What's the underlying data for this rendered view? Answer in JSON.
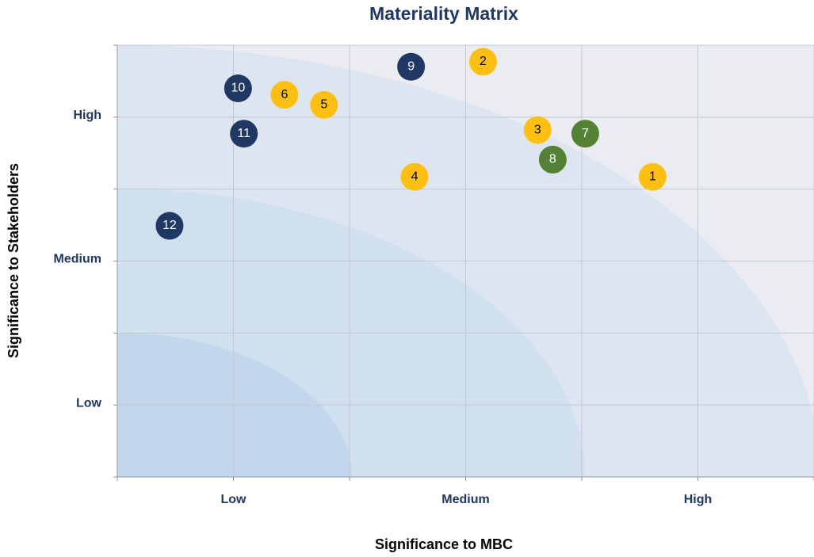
{
  "chart_data": {
    "type": "scatter",
    "title": "Materiality Matrix",
    "x_label": "Significance to MBC",
    "y_label": "Significance to Stakeholders",
    "xlim": [
      0,
      6
    ],
    "ylim": [
      0,
      6
    ],
    "xticks": [
      {
        "value": 1,
        "label": "Low"
      },
      {
        "value": 3,
        "label": "Medium"
      },
      {
        "value": 5,
        "label": "High"
      }
    ],
    "yticks": [
      {
        "value": 1,
        "label": "Low"
      },
      {
        "value": 3,
        "label": "Medium"
      },
      {
        "value": 5,
        "label": "High"
      }
    ],
    "xminorticks": [
      0,
      2,
      4,
      6
    ],
    "yminorticks": [
      0,
      2,
      4,
      6
    ],
    "grid": true,
    "series": [
      {
        "color": "#fdc010",
        "text_color": "#000000",
        "labels": [
          "1",
          "2",
          "3",
          "4",
          "5",
          "6"
        ],
        "x": [
          4.61,
          3.15,
          3.62,
          2.56,
          1.78,
          1.44
        ],
        "values": [
          4.17,
          5.77,
          4.82,
          4.17,
          5.17,
          5.31
        ]
      },
      {
        "color": "#548235",
        "text_color": "#ffffff",
        "labels": [
          "7",
          "8"
        ],
        "x": [
          4.03,
          3.75
        ],
        "values": [
          4.77,
          4.41
        ]
      },
      {
        "color": "#1f3864",
        "text_color": "#ffffff",
        "labels": [
          "9",
          "10",
          "11",
          "12"
        ],
        "x": [
          2.53,
          1.04,
          1.09,
          0.45
        ],
        "values": [
          5.7,
          5.4,
          4.77,
          3.49
        ]
      }
    ]
  }
}
